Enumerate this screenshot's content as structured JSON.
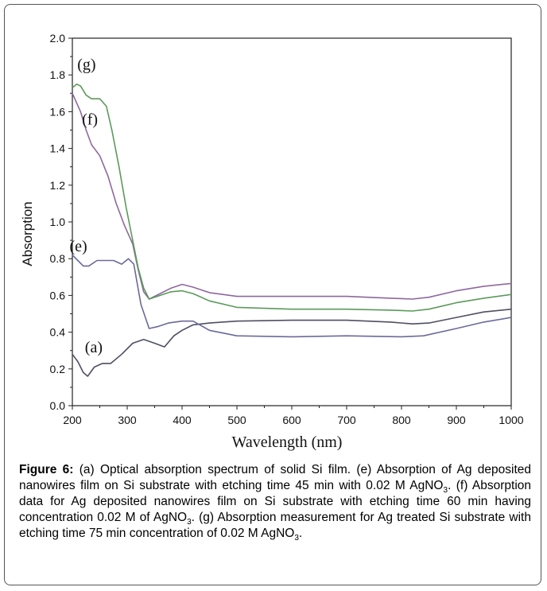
{
  "chart_data": {
    "type": "line",
    "xlabel": "Wavelength (nm)",
    "ylabel": "Absorption",
    "xlim": [
      200,
      1000
    ],
    "ylim": [
      0,
      2.0
    ],
    "xticks": [
      "200",
      "300",
      "400",
      "500",
      "600",
      "700",
      "800",
      "900",
      "1000"
    ],
    "yticks": [
      "0.0",
      "0.2",
      "0.4",
      "0.6",
      "0.8",
      "1.0",
      "1.2",
      "1.4",
      "1.6",
      "1.8",
      "2.0"
    ],
    "grid": false,
    "series": [
      {
        "name": "(a)",
        "color": "#4f4f62",
        "points": [
          [
            200,
            0.28
          ],
          [
            210,
            0.24
          ],
          [
            220,
            0.18
          ],
          [
            228,
            0.16
          ],
          [
            240,
            0.21
          ],
          [
            255,
            0.23
          ],
          [
            270,
            0.23
          ],
          [
            290,
            0.28
          ],
          [
            310,
            0.34
          ],
          [
            330,
            0.36
          ],
          [
            350,
            0.34
          ],
          [
            368,
            0.32
          ],
          [
            385,
            0.38
          ],
          [
            400,
            0.41
          ],
          [
            420,
            0.44
          ],
          [
            450,
            0.45
          ],
          [
            500,
            0.46
          ],
          [
            600,
            0.465
          ],
          [
            700,
            0.465
          ],
          [
            780,
            0.455
          ],
          [
            820,
            0.445
          ],
          [
            850,
            0.45
          ],
          [
            900,
            0.48
          ],
          [
            950,
            0.51
          ],
          [
            1000,
            0.525
          ]
        ]
      },
      {
        "name": "(e)",
        "color": "#6a6a9a",
        "points": [
          [
            200,
            0.82
          ],
          [
            210,
            0.79
          ],
          [
            220,
            0.76
          ],
          [
            230,
            0.76
          ],
          [
            245,
            0.79
          ],
          [
            260,
            0.79
          ],
          [
            275,
            0.79
          ],
          [
            290,
            0.77
          ],
          [
            302,
            0.8
          ],
          [
            312,
            0.77
          ],
          [
            325,
            0.55
          ],
          [
            340,
            0.42
          ],
          [
            355,
            0.43
          ],
          [
            375,
            0.45
          ],
          [
            400,
            0.46
          ],
          [
            420,
            0.46
          ],
          [
            450,
            0.41
          ],
          [
            500,
            0.38
          ],
          [
            600,
            0.375
          ],
          [
            700,
            0.38
          ],
          [
            800,
            0.375
          ],
          [
            840,
            0.38
          ],
          [
            900,
            0.42
          ],
          [
            950,
            0.455
          ],
          [
            1000,
            0.48
          ]
        ]
      },
      {
        "name": "(f)",
        "color": "#8e689e",
        "points": [
          [
            200,
            1.7
          ],
          [
            215,
            1.6
          ],
          [
            225,
            1.5
          ],
          [
            235,
            1.42
          ],
          [
            250,
            1.36
          ],
          [
            265,
            1.25
          ],
          [
            280,
            1.1
          ],
          [
            295,
            0.98
          ],
          [
            310,
            0.88
          ],
          [
            320,
            0.74
          ],
          [
            330,
            0.62
          ],
          [
            340,
            0.58
          ],
          [
            360,
            0.61
          ],
          [
            380,
            0.64
          ],
          [
            400,
            0.66
          ],
          [
            420,
            0.645
          ],
          [
            450,
            0.615
          ],
          [
            500,
            0.595
          ],
          [
            600,
            0.595
          ],
          [
            700,
            0.595
          ],
          [
            780,
            0.585
          ],
          [
            820,
            0.58
          ],
          [
            850,
            0.59
          ],
          [
            900,
            0.625
          ],
          [
            950,
            0.65
          ],
          [
            1000,
            0.665
          ]
        ]
      },
      {
        "name": "(g)",
        "color": "#5b9a5b",
        "points": [
          [
            200,
            1.73
          ],
          [
            208,
            1.75
          ],
          [
            215,
            1.74
          ],
          [
            225,
            1.69
          ],
          [
            235,
            1.67
          ],
          [
            250,
            1.67
          ],
          [
            262,
            1.63
          ],
          [
            272,
            1.5
          ],
          [
            285,
            1.3
          ],
          [
            298,
            1.08
          ],
          [
            310,
            0.9
          ],
          [
            320,
            0.75
          ],
          [
            330,
            0.64
          ],
          [
            340,
            0.58
          ],
          [
            360,
            0.6
          ],
          [
            380,
            0.62
          ],
          [
            400,
            0.625
          ],
          [
            420,
            0.61
          ],
          [
            450,
            0.57
          ],
          [
            500,
            0.535
          ],
          [
            600,
            0.525
          ],
          [
            700,
            0.525
          ],
          [
            780,
            0.52
          ],
          [
            820,
            0.515
          ],
          [
            850,
            0.525
          ],
          [
            900,
            0.56
          ],
          [
            950,
            0.585
          ],
          [
            1000,
            0.605
          ]
        ]
      }
    ]
  },
  "caption": {
    "label": "Figure 6:",
    "p1": " (a) Optical absorption spectrum of solid Si film. (e) Absorption of Ag deposited nanowires film on Si substrate with etching time 45 min with 0.02 M AgNO",
    "sub1": "3",
    "p2": ". (f) Absorption data for Ag deposited nanowires film on Si substrate with etching time 60 min having concentration 0.02 M of AgNO",
    "sub2": "3",
    "p3": ". (g) Absorption measurement for Ag treated Si substrate with etching time 75 min concentration of 0.02 M AgNO",
    "sub3": "3",
    "p4": "."
  }
}
